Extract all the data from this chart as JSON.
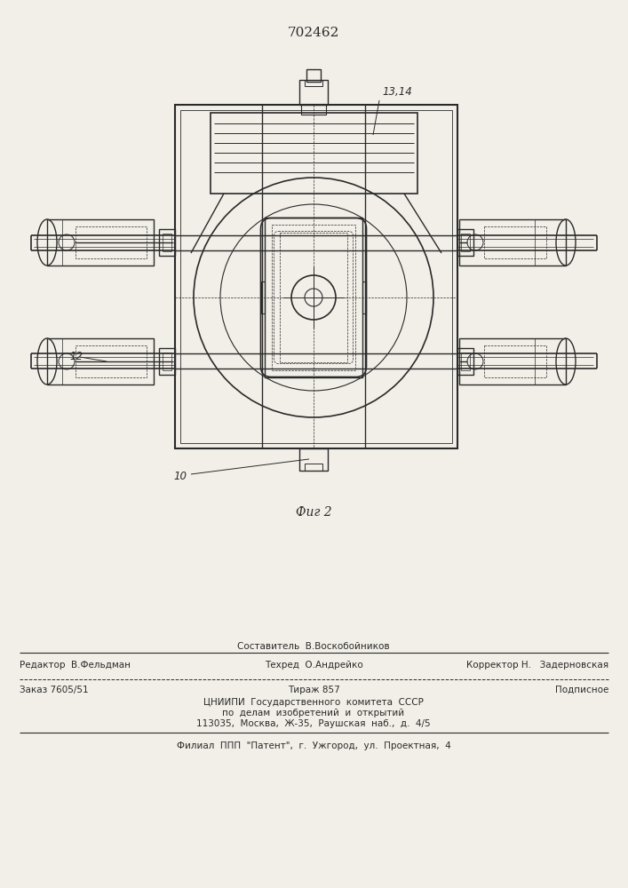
{
  "patent_number": "702462",
  "fig_label": "Фиг 2",
  "label_12": "12",
  "label_10": "10",
  "label_1314": "13,14",
  "bg_color": "#f2efe8",
  "line_color": "#2a2a2a",
  "footer_составитель": "Составитель  В.Воскобойников",
  "footer_редактор": "Редактор  В.Фельдман",
  "footer_техред": "Техред  О.Андрейко",
  "footer_корректор": "Корректор Н.   Задерновская",
  "footer_заказ": "Заказ 7605/51",
  "footer_тираж": "Тираж 857",
  "footer_подписное": "Подписное",
  "footer_цниипи1": "ЦНИИПИ  Государственного  комитета  СССР",
  "footer_цниипи2": "по  делам  изобретений  и  открытий",
  "footer_цниипи3": "113035,  Москва,  Ж-35,  Раушская  наб.,  д.  4/5",
  "footer_филиал": "Филиал  ППП  \"Патент\",  г.  Ужгород,  ул.  Проектная,  4"
}
